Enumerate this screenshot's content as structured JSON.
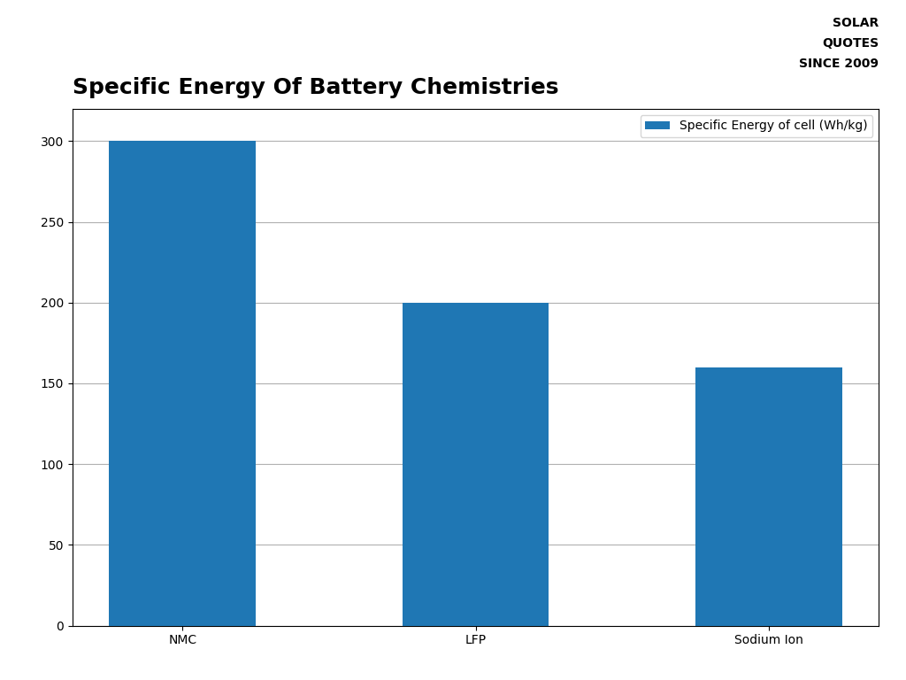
{
  "chart_data": {
    "type": "bar",
    "title": "Specific Energy Of Battery Chemistries",
    "categories": [
      "NMC",
      "LFP",
      "Sodium Ion"
    ],
    "series": [
      {
        "name": "Specific Energy of cell (Wh/kg)",
        "values": [
          300,
          200,
          160
        ]
      }
    ],
    "ylim": [
      0,
      320
    ],
    "yticks": [
      0,
      50,
      100,
      150,
      200,
      250,
      300
    ],
    "grid": true,
    "legend": "upper right",
    "annotations": [
      "SOLAR",
      "QUOTES",
      "SINCE 2009"
    ]
  }
}
